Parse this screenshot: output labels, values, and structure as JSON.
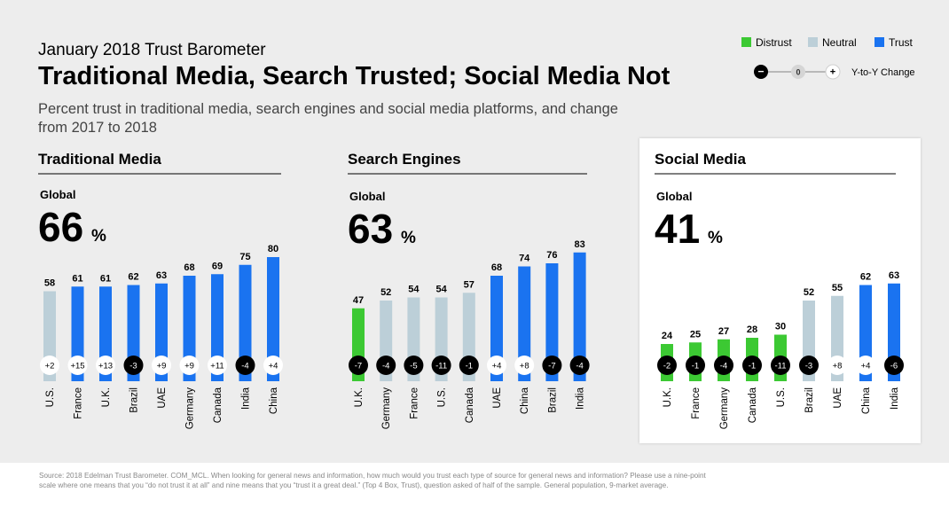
{
  "header": {
    "supertitle": "January 2018 Trust Barometer",
    "title": "Traditional Media, Search Trusted; Social Media Not",
    "subtitle": "Percent trust in traditional media, search engines and social media platforms, and change from 2017 to 2018"
  },
  "legend": {
    "items": [
      {
        "label": "Distrust",
        "color": "#3cc933"
      },
      {
        "label": "Neutral",
        "color": "#bccfd8"
      },
      {
        "label": "Trust",
        "color": "#1a73f0"
      }
    ],
    "change_scale": {
      "minus": "−",
      "zero": "0",
      "plus": "+",
      "label": "Y-to-Y Change"
    }
  },
  "colors": {
    "distrust": "#3cc933",
    "neutral": "#bccfd8",
    "trust": "#1a73f0",
    "badge_dark": "#000000",
    "badge_light": "#ffffff"
  },
  "chart_data": [
    {
      "type": "bar",
      "title": "Traditional Media",
      "global_label": "Global",
      "global_value": "66",
      "global_unit": "%",
      "ylim": [
        0,
        100
      ],
      "categories": [
        "U.S.",
        "France",
        "U.K.",
        "Brazil",
        "UAE",
        "Germany",
        "Canada",
        "India",
        "China"
      ],
      "values": [
        58,
        61,
        61,
        62,
        63,
        68,
        69,
        75,
        80
      ],
      "bar_class": [
        "neutral",
        "trust",
        "trust",
        "trust",
        "trust",
        "trust",
        "trust",
        "trust",
        "trust"
      ],
      "changes": [
        "+2",
        "+15",
        "+13",
        "-3",
        "+9",
        "+9",
        "+11",
        "-4",
        "+4"
      ]
    },
    {
      "type": "bar",
      "title": "Search Engines",
      "global_label": "Global",
      "global_value": "63",
      "global_unit": "%",
      "ylim": [
        0,
        100
      ],
      "categories": [
        "U.K.",
        "Germany",
        "France",
        "U.S.",
        "Canada",
        "UAE",
        "China",
        "Brazil",
        "India"
      ],
      "values": [
        47,
        52,
        54,
        54,
        57,
        68,
        74,
        76,
        83
      ],
      "bar_class": [
        "distrust",
        "neutral",
        "neutral",
        "neutral",
        "neutral",
        "trust",
        "trust",
        "trust",
        "trust"
      ],
      "changes": [
        "-7",
        "-4",
        "-5",
        "-11",
        "-1",
        "+4",
        "+8",
        "-7",
        "-4"
      ]
    },
    {
      "type": "bar",
      "title": "Social Media",
      "global_label": "Global",
      "global_value": "41",
      "global_unit": "%",
      "ylim": [
        0,
        100
      ],
      "categories": [
        "U.K.",
        "France",
        "Germany",
        "Canada",
        "U.S.",
        "Brazil",
        "UAE",
        "China",
        "India"
      ],
      "values": [
        24,
        25,
        27,
        28,
        30,
        52,
        55,
        62,
        63
      ],
      "bar_class": [
        "distrust",
        "distrust",
        "distrust",
        "distrust",
        "distrust",
        "neutral",
        "neutral",
        "trust",
        "trust"
      ],
      "changes": [
        "-2",
        "-1",
        "-4",
        "-1",
        "-11",
        "-3",
        "+8",
        "+4",
        "-6"
      ]
    }
  ],
  "footer": {
    "source": "Source: 2018 Edelman Trust Barometer. COM_MCL. When looking for general news and information, how much would you trust each type of source for general news and information? Please use a nine-point scale where one means that you “do not trust it at all” and nine means that you “trust it a great deal.” (Top 4 Box, Trust), question asked of half of the sample. General population, 9-market average."
  }
}
